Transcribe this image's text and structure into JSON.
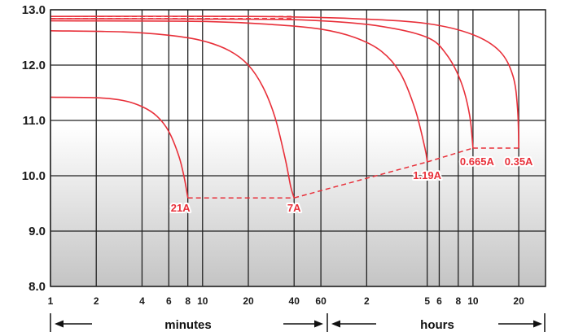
{
  "chart_data": {
    "type": "line",
    "xscale": "log",
    "xlim_minutes": [
      1,
      1800
    ],
    "ylim": [
      8.0,
      13.0
    ],
    "y_ticks": [
      "8.0",
      "9.0",
      "10.0",
      "11.0",
      "12.0",
      "13.0"
    ],
    "x_ticks": [
      {
        "minutes": 1,
        "label": "1"
      },
      {
        "minutes": 2,
        "label": "2"
      },
      {
        "minutes": 4,
        "label": "4"
      },
      {
        "minutes": 6,
        "label": "6"
      },
      {
        "minutes": 8,
        "label": "8"
      },
      {
        "minutes": 10,
        "label": "10"
      },
      {
        "minutes": 20,
        "label": "20"
      },
      {
        "minutes": 40,
        "label": "40"
      },
      {
        "minutes": 60,
        "label": "60"
      },
      {
        "minutes": 120,
        "label": "2"
      },
      {
        "minutes": 300,
        "label": "5"
      },
      {
        "minutes": 360,
        "label": "6"
      },
      {
        "minutes": 480,
        "label": "8"
      },
      {
        "minutes": 600,
        "label": "10"
      },
      {
        "minutes": 1200,
        "label": "20"
      }
    ],
    "grid_minutes": [
      1,
      2,
      4,
      6,
      8,
      10,
      20,
      40,
      60,
      120,
      300,
      360,
      480,
      600,
      1200
    ],
    "scale_labels": {
      "minutes": "minutes",
      "hours": "hours"
    },
    "line_color": "#e8303a",
    "series": [
      {
        "name": "21A",
        "points": [
          [
            1,
            11.42
          ],
          [
            2,
            11.41
          ],
          [
            3,
            11.36
          ],
          [
            4,
            11.25
          ],
          [
            5,
            11.08
          ],
          [
            6,
            10.8
          ],
          [
            7,
            10.35
          ],
          [
            7.6,
            9.95
          ],
          [
            8,
            9.6
          ]
        ]
      },
      {
        "name": "7A",
        "points": [
          [
            1,
            12.62
          ],
          [
            3,
            12.6
          ],
          [
            6,
            12.54
          ],
          [
            10,
            12.44
          ],
          [
            15,
            12.26
          ],
          [
            20,
            12.0
          ],
          [
            25,
            11.6
          ],
          [
            30,
            11.05
          ],
          [
            35,
            10.3
          ],
          [
            38,
            9.8
          ],
          [
            40,
            9.6
          ]
        ]
      },
      {
        "name": "1.19A",
        "points": [
          [
            1,
            12.8
          ],
          [
            10,
            12.79
          ],
          [
            30,
            12.73
          ],
          [
            60,
            12.65
          ],
          [
            100,
            12.5
          ],
          [
            150,
            12.25
          ],
          [
            200,
            11.85
          ],
          [
            250,
            11.2
          ],
          [
            290,
            10.5
          ],
          [
            300,
            10.25
          ]
        ]
      },
      {
        "name": "0.665A",
        "points": [
          [
            1,
            12.84
          ],
          [
            20,
            12.83
          ],
          [
            60,
            12.8
          ],
          [
            150,
            12.7
          ],
          [
            300,
            12.5
          ],
          [
            400,
            12.2
          ],
          [
            500,
            11.7
          ],
          [
            570,
            11.1
          ],
          [
            600,
            10.5
          ]
        ]
      },
      {
        "name": "0.35A",
        "points": [
          [
            1,
            12.88
          ],
          [
            20,
            12.88
          ],
          [
            100,
            12.84
          ],
          [
            300,
            12.75
          ],
          [
            600,
            12.55
          ],
          [
            900,
            12.25
          ],
          [
            1100,
            11.8
          ],
          [
            1180,
            11.2
          ],
          [
            1200,
            10.5
          ]
        ]
      }
    ],
    "dashed_lines": [
      {
        "points": [
          [
            8,
            9.6
          ],
          [
            40,
            9.6
          ]
        ]
      },
      {
        "points": [
          [
            40,
            9.6
          ],
          [
            300,
            10.25
          ]
        ]
      },
      {
        "points": [
          [
            300,
            10.25
          ],
          [
            600,
            10.5
          ]
        ]
      },
      {
        "points": [
          [
            600,
            10.5
          ],
          [
            1200,
            10.5
          ]
        ]
      },
      {
        "points": [
          [
            1,
            12.84
          ],
          [
            40,
            12.84
          ]
        ]
      },
      {
        "points": [
          [
            1,
            12.88
          ],
          [
            40,
            12.88
          ]
        ]
      }
    ],
    "curve_labels": [
      {
        "text": "21A",
        "minutes": 8,
        "v": 9.6
      },
      {
        "text": "7A",
        "minutes": 40,
        "v": 9.6
      },
      {
        "text": "1.19A",
        "minutes": 300,
        "v": 10.25
      },
      {
        "text": "0.665A",
        "minutes": 600,
        "v": 10.5
      },
      {
        "text": "0.35A",
        "minutes": 1200,
        "v": 10.5
      }
    ]
  }
}
